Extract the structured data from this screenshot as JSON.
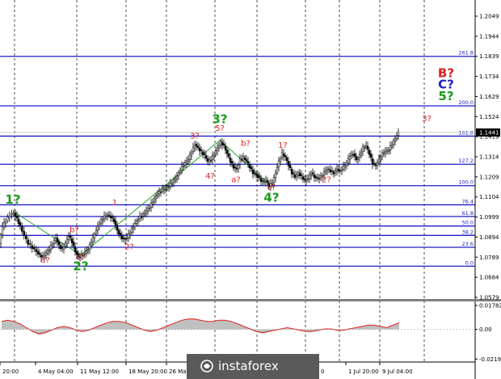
{
  "chart_data": [
    {
      "type": "candlestick",
      "title": "",
      "ylim": [
        1.0579,
        1.2049
      ],
      "y_ticks": [
        "1.2049",
        "1.1944",
        "1.1839",
        "1.1734",
        "1.1629",
        "1.1524",
        "1.1419",
        "1.1314",
        "1.1209",
        "1.1104",
        "1.0999",
        "1.0894",
        "1.0789",
        "1.0684",
        "1.0579"
      ],
      "x_ticks": [
        "20:00",
        "4 May 04:00",
        "11 May 12:00",
        "18 May 20:00",
        "26 May 04:00",
        "2 Jul",
        "0",
        "1 Jul 20:00",
        "9 Jul 04:00"
      ],
      "current_price": "1.1441",
      "price_path": [
        [
          0,
          1.086
        ],
        [
          4,
          1.095
        ],
        [
          8,
          1.098
        ],
        [
          13,
          1.101
        ],
        [
          18,
          1.102
        ],
        [
          22,
          1.099
        ],
        [
          26,
          1.095
        ],
        [
          31,
          1.09
        ],
        [
          36,
          1.086
        ],
        [
          41,
          1.084
        ],
        [
          46,
          1.082
        ],
        [
          50,
          1.08
        ],
        [
          54,
          1.079
        ],
        [
          58,
          1.081
        ],
        [
          62,
          1.083
        ],
        [
          66,
          1.086
        ],
        [
          70,
          1.089
        ],
        [
          74,
          1.085
        ],
        [
          78,
          1.083
        ],
        [
          82,
          1.086
        ],
        [
          86,
          1.09
        ],
        [
          90,
          1.087
        ],
        [
          94,
          1.082
        ],
        [
          98,
          1.079
        ],
        [
          102,
          1.08
        ],
        [
          106,
          1.081
        ],
        [
          110,
          1.083
        ],
        [
          114,
          1.087
        ],
        [
          118,
          1.091
        ],
        [
          122,
          1.095
        ],
        [
          126,
          1.098
        ],
        [
          130,
          1.1
        ],
        [
          134,
          1.101
        ],
        [
          138,
          1.1
        ],
        [
          142,
          1.098
        ],
        [
          146,
          1.093
        ],
        [
          150,
          1.09
        ],
        [
          154,
          1.088
        ],
        [
          158,
          1.089
        ],
        [
          162,
          1.092
        ],
        [
          166,
          1.095
        ],
        [
          170,
          1.098
        ],
        [
          174,
          1.1
        ],
        [
          178,
          1.101
        ],
        [
          182,
          1.103
        ],
        [
          186,
          1.105
        ],
        [
          190,
          1.108
        ],
        [
          194,
          1.111
        ],
        [
          198,
          1.113
        ],
        [
          202,
          1.114
        ],
        [
          206,
          1.115
        ],
        [
          210,
          1.116
        ],
        [
          214,
          1.118
        ],
        [
          218,
          1.12
        ],
        [
          222,
          1.123
        ],
        [
          226,
          1.126
        ],
        [
          230,
          1.128
        ],
        [
          234,
          1.13
        ],
        [
          238,
          1.134
        ],
        [
          242,
          1.138
        ],
        [
          246,
          1.136
        ],
        [
          250,
          1.134
        ],
        [
          254,
          1.132
        ],
        [
          258,
          1.129
        ],
        [
          262,
          1.13
        ],
        [
          266,
          1.133
        ],
        [
          270,
          1.136
        ],
        [
          274,
          1.139
        ],
        [
          278,
          1.137
        ],
        [
          282,
          1.133
        ],
        [
          286,
          1.129
        ],
        [
          290,
          1.126
        ],
        [
          294,
          1.125
        ],
        [
          298,
          1.13
        ],
        [
          302,
          1.131
        ],
        [
          306,
          1.129
        ],
        [
          310,
          1.126
        ],
        [
          314,
          1.123
        ],
        [
          318,
          1.122
        ],
        [
          322,
          1.12
        ],
        [
          326,
          1.118
        ],
        [
          330,
          1.119
        ],
        [
          334,
          1.116
        ],
        [
          338,
          1.118
        ],
        [
          342,
          1.123
        ],
        [
          346,
          1.129
        ],
        [
          350,
          1.133
        ],
        [
          354,
          1.131
        ],
        [
          358,
          1.127
        ],
        [
          362,
          1.123
        ],
        [
          366,
          1.121
        ],
        [
          370,
          1.123
        ],
        [
          374,
          1.121
        ],
        [
          378,
          1.119
        ],
        [
          382,
          1.12
        ],
        [
          386,
          1.123
        ],
        [
          390,
          1.121
        ],
        [
          394,
          1.12
        ],
        [
          398,
          1.121
        ],
        [
          402,
          1.123
        ],
        [
          406,
          1.125
        ],
        [
          410,
          1.124
        ],
        [
          414,
          1.123
        ],
        [
          418,
          1.125
        ],
        [
          422,
          1.124
        ],
        [
          426,
          1.126
        ],
        [
          430,
          1.128
        ],
        [
          434,
          1.132
        ],
        [
          438,
          1.133
        ],
        [
          442,
          1.13
        ],
        [
          446,
          1.132
        ],
        [
          450,
          1.136
        ],
        [
          454,
          1.137
        ],
        [
          458,
          1.133
        ],
        [
          462,
          1.128
        ],
        [
          466,
          1.127
        ],
        [
          470,
          1.13
        ],
        [
          474,
          1.133
        ],
        [
          478,
          1.134
        ],
        [
          482,
          1.135
        ],
        [
          486,
          1.138
        ],
        [
          490,
          1.141
        ],
        [
          494,
          1.1441
        ]
      ],
      "fib_levels": [
        {
          "label": "261.8",
          "value": 1.1839
        },
        {
          "label": "200.0",
          "value": 1.158
        },
        {
          "label": "161.8",
          "value": 1.1422
        },
        {
          "label": "127.2",
          "value": 1.1275
        },
        {
          "label": "100.0",
          "value": 1.1163
        },
        {
          "label": "76.4",
          "value": 1.1063
        },
        {
          "label": "61.8",
          "value": 1.1002
        },
        {
          "label": "50.0",
          "value": 1.0952
        },
        {
          "label": "38.2",
          "value": 1.0903
        },
        {
          "label": "23.6",
          "value": 1.0841
        },
        {
          "label": "0.0",
          "value": 1.0742
        }
      ],
      "wave_labels": [
        {
          "text": "1?",
          "x": 16,
          "y": 1.107,
          "color": "#1a9a1a",
          "size": "big"
        },
        {
          "text": "a?",
          "x": 56,
          "y": 1.076,
          "color": "#e02020",
          "size": "small"
        },
        {
          "text": "b?",
          "x": 92,
          "y": 1.092,
          "color": "#e02020",
          "size": "small"
        },
        {
          "text": "c?",
          "x": 100,
          "y": 1.0775,
          "color": "#e02020",
          "size": "small"
        },
        {
          "text": "2?",
          "x": 100,
          "y": 1.072,
          "color": "#1a9a1a",
          "size": "big"
        },
        {
          "text": "1",
          "x": 142,
          "y": 1.106,
          "color": "#e02020",
          "size": "small"
        },
        {
          "text": "2?",
          "x": 160,
          "y": 1.083,
          "color": "#e02020",
          "size": "small"
        },
        {
          "text": "3?",
          "x": 241,
          "y": 1.141,
          "color": "#e02020",
          "size": "small"
        },
        {
          "text": "4?",
          "x": 260,
          "y": 1.12,
          "color": "#e02020",
          "size": "small"
        },
        {
          "text": "5?",
          "x": 272,
          "y": 1.145,
          "color": "#e02020",
          "size": "small"
        },
        {
          "text": "3?",
          "x": 272,
          "y": 1.149,
          "color": "#1a9a1a",
          "size": "big"
        },
        {
          "text": "a?",
          "x": 292,
          "y": 1.118,
          "color": "#e02020",
          "size": "small"
        },
        {
          "text": "b?",
          "x": 304,
          "y": 1.137,
          "color": "#e02020",
          "size": "small"
        },
        {
          "text": "c?",
          "x": 336,
          "y": 1.114,
          "color": "#e02020",
          "size": "small"
        },
        {
          "text": "4?",
          "x": 336,
          "y": 1.108,
          "color": "#1a9a1a",
          "size": "big"
        },
        {
          "text": "1?",
          "x": 350,
          "y": 1.136,
          "color": "#e02020",
          "size": "small"
        },
        {
          "text": "2?",
          "x": 404,
          "y": 1.118,
          "color": "#e02020",
          "size": "small"
        },
        {
          "text": "3?",
          "x": 528,
          "y": 1.15,
          "color": "#e02020",
          "size": "small"
        },
        {
          "text": "5?",
          "x": 552,
          "y": 1.161,
          "color": "#1a9a1a",
          "size": "big"
        },
        {
          "text": "C?",
          "x": 552,
          "y": 1.167,
          "color": "#1e1ec8",
          "size": "big"
        },
        {
          "text": "B?",
          "x": 552,
          "y": 1.173,
          "color": "#e02020",
          "size": "big"
        }
      ],
      "trend_lines": [
        [
          [
            16,
            1.103
          ],
          [
            100,
            1.08
          ]
        ],
        [
          [
            100,
            1.08
          ],
          [
            272,
            1.14
          ]
        ],
        [
          [
            272,
            1.14
          ],
          [
            336,
            1.116
          ]
        ]
      ]
    },
    {
      "type": "area",
      "title": "",
      "ylim": [
        -0.0218,
        0.0178
      ],
      "y_ticks": [
        "0.01782",
        "0.00",
        "-0.02198"
      ],
      "values": [
        0.006,
        0.007,
        0.006,
        0.004,
        0.001,
        -0.002,
        -0.004,
        -0.003,
        -0.001,
        0.001,
        0.002,
        0.001,
        -0.001,
        -0.002,
        -0.001,
        0.001,
        0.003,
        0.005,
        0.006,
        0.006,
        0.005,
        0.003,
        0.001,
        -0.001,
        -0.002,
        -0.001,
        0.001,
        0.003,
        0.005,
        0.007,
        0.008,
        0.008,
        0.007,
        0.006,
        0.006,
        0.007,
        0.007,
        0.006,
        0.004,
        0.002,
        0.0,
        -0.002,
        -0.003,
        -0.002,
        -0.001,
        0.0,
        0.001,
        0.0,
        -0.001,
        -0.002,
        -0.002,
        -0.001,
        0.0,
        0.0,
        -0.001,
        -0.001,
        0.0,
        0.001,
        0.002,
        0.003,
        0.003,
        0.002,
        0.001,
        0.003,
        0.005
      ]
    }
  ],
  "logo": {
    "text": "instaforex"
  }
}
